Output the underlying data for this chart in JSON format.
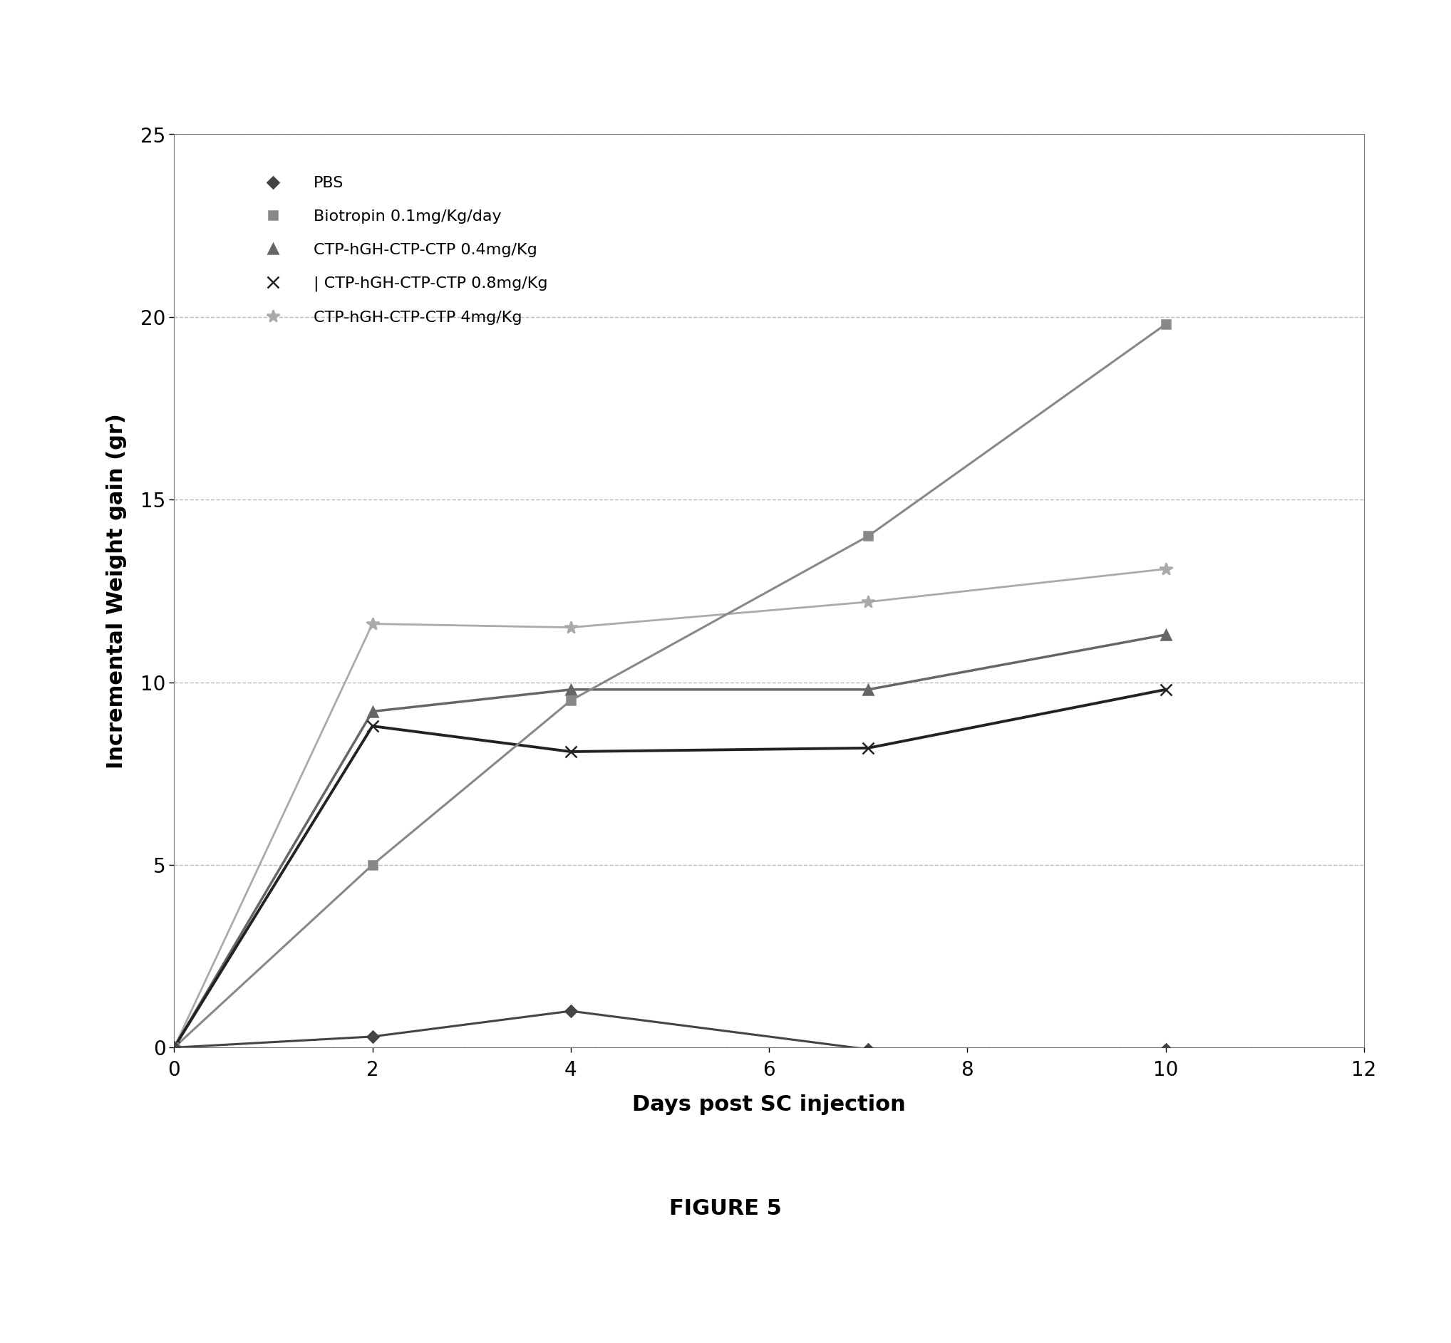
{
  "series": [
    {
      "label": "PBS",
      "x": [
        0,
        2,
        4,
        7,
        10
      ],
      "y": [
        0,
        0.3,
        1.0,
        -0.05,
        -0.05
      ],
      "color": "#444444",
      "marker": "D",
      "linewidth": 2.2,
      "markersize": 8,
      "zorder": 5,
      "fillmarker": true
    },
    {
      "label": "Biotropin 0.1mg/Kg/day",
      "x": [
        0,
        2,
        4,
        7,
        10
      ],
      "y": [
        0,
        5.0,
        9.5,
        14.0,
        19.8
      ],
      "color": "#888888",
      "marker": "s",
      "linewidth": 2.2,
      "markersize": 9,
      "zorder": 4,
      "fillmarker": true
    },
    {
      "label": "CTP-hGH-CTP-CTP 0.4mg/Kg",
      "x": [
        0,
        2,
        4,
        7,
        10
      ],
      "y": [
        0,
        9.2,
        9.8,
        9.8,
        11.3
      ],
      "color": "#666666",
      "marker": "^",
      "linewidth": 2.5,
      "markersize": 10,
      "zorder": 3,
      "fillmarker": true
    },
    {
      "label": "| CTP-hGH-CTP-CTP 0.8mg/Kg",
      "x": [
        0,
        2,
        4,
        7,
        10
      ],
      "y": [
        0,
        8.8,
        8.1,
        8.2,
        9.8
      ],
      "color": "#222222",
      "marker": "x",
      "linewidth": 2.8,
      "markersize": 11,
      "zorder": 3,
      "fillmarker": false
    },
    {
      "label": "CTP-hGH-CTP-CTP 4mg/Kg",
      "x": [
        0,
        2,
        4,
        7,
        10
      ],
      "y": [
        0,
        11.6,
        11.5,
        12.2,
        13.1
      ],
      "color": "#aaaaaa",
      "marker": "*",
      "linewidth": 2.0,
      "markersize": 13,
      "zorder": 2,
      "fillmarker": true
    }
  ],
  "xlabel": "Days post SC injection",
  "ylabel": "Incremental Weight gain (gr)",
  "xlim": [
    0,
    12
  ],
  "ylim": [
    0,
    25
  ],
  "xticks": [
    0,
    2,
    4,
    6,
    8,
    10,
    12
  ],
  "yticks": [
    0,
    5,
    10,
    15,
    20,
    25
  ],
  "figure_caption": "FIGURE 5",
  "background_color": "#ffffff",
  "grid_color": "#bbbbbb",
  "label_fontsize": 22,
  "tick_fontsize": 20,
  "legend_fontsize": 16
}
